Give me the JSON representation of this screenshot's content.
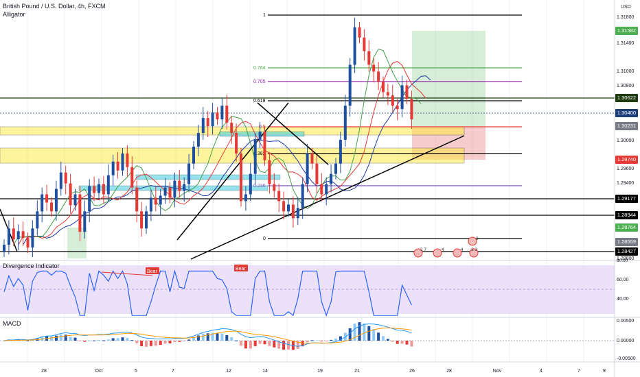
{
  "header": {
    "symbol": "British Pound / U.S. Dollar, 4h, FXCM",
    "indicator": "Alligator"
  },
  "axis": {
    "currency": "USD",
    "price_ticks": [
      "1.31800",
      "1.31400",
      "1.31000",
      "1.30800",
      "1.30000",
      "1.29600",
      "1.29400",
      "1.28800"
    ],
    "date_ticks": [
      "28",
      "Oct",
      "5",
      "7",
      "12",
      "14",
      "19",
      "21",
      "26",
      "28",
      "Nov",
      "4",
      "7",
      "9"
    ]
  },
  "price_tags": [
    {
      "label": "1.31582",
      "color": "#4caf50"
    },
    {
      "label": "1.30622",
      "color": "#1e3a0f"
    },
    {
      "label": "1.30400",
      "color": "#1c3f7a"
    },
    {
      "label": "1.30231",
      "color": "#787b86"
    },
    {
      "label": "1.29740",
      "color": "#e53935"
    },
    {
      "label": "1.29177",
      "color": "#000000"
    },
    {
      "label": "1.28944",
      "color": "#000000"
    },
    {
      "label": "1.28764",
      "color": "#4caf50"
    },
    {
      "label": "1.28559",
      "color": "#787b86"
    },
    {
      "label": "1.28427",
      "color": "#000000"
    }
  ],
  "fib_labels": [
    "1",
    "0.764",
    "0.705",
    "0.618",
    "0.5",
    "0.382",
    "0.236",
    "0"
  ],
  "divergence": {
    "title": "Divergence Indicator",
    "levels": [
      "80.00",
      "60.00",
      "40.00"
    ],
    "bear_labels": [
      "Bear",
      "Bear"
    ]
  },
  "macd": {
    "title": "MACD",
    "levels": [
      "0.00500",
      "0.00000",
      "-0.00500"
    ]
  },
  "event_badges": [
    "2 7",
    "4",
    "4",
    "3 3",
    "3"
  ],
  "colors": {
    "up": "#1e4fa0",
    "down": "#e53935",
    "highlight": "#ffeb3b",
    "zone": "#00bcd4",
    "purple_bg": "#e9dcf7",
    "long_zone": "#a5d6a7",
    "stop_zone": "#ef9a9a"
  },
  "chart_data": {
    "type": "candlestick",
    "title": "British Pound / U.S. Dollar, 4h, FXCM",
    "ylim": [
      1.2835,
      1.3205
    ],
    "close": [
      1.2856,
      1.288,
      1.2864,
      1.2876,
      1.2866,
      1.2852,
      1.288,
      1.2905,
      1.293,
      1.2918,
      1.2905,
      1.2938,
      1.2962,
      1.2946,
      1.2914,
      1.293,
      1.2875,
      1.2905,
      1.2942,
      1.2932,
      1.2945,
      1.293,
      1.2958,
      1.2978,
      1.2965,
      1.299,
      1.297,
      1.294,
      1.2905,
      1.288,
      1.2905,
      1.2925,
      1.2915,
      1.2928,
      1.294,
      1.2925,
      1.295,
      1.2935,
      1.2945,
      1.2975,
      1.3,
      1.302,
      1.3042,
      1.303,
      1.305,
      1.304,
      1.306,
      1.3035,
      1.302,
      1.299,
      1.292,
      1.293,
      1.296,
      1.301,
      1.3022,
      1.298,
      1.2945,
      1.2935,
      1.292,
      1.2905,
      1.2915,
      1.2895,
      1.291,
      1.2945,
      1.299,
      1.2975,
      1.2945,
      1.293,
      1.2945,
      1.296,
      1.2975,
      1.301,
      1.306,
      1.312,
      1.3175,
      1.316,
      1.314,
      1.312,
      1.311,
      1.3095,
      1.308,
      1.3075,
      1.306,
      1.3055,
      1.309,
      1.307,
      1.304
    ]
  }
}
